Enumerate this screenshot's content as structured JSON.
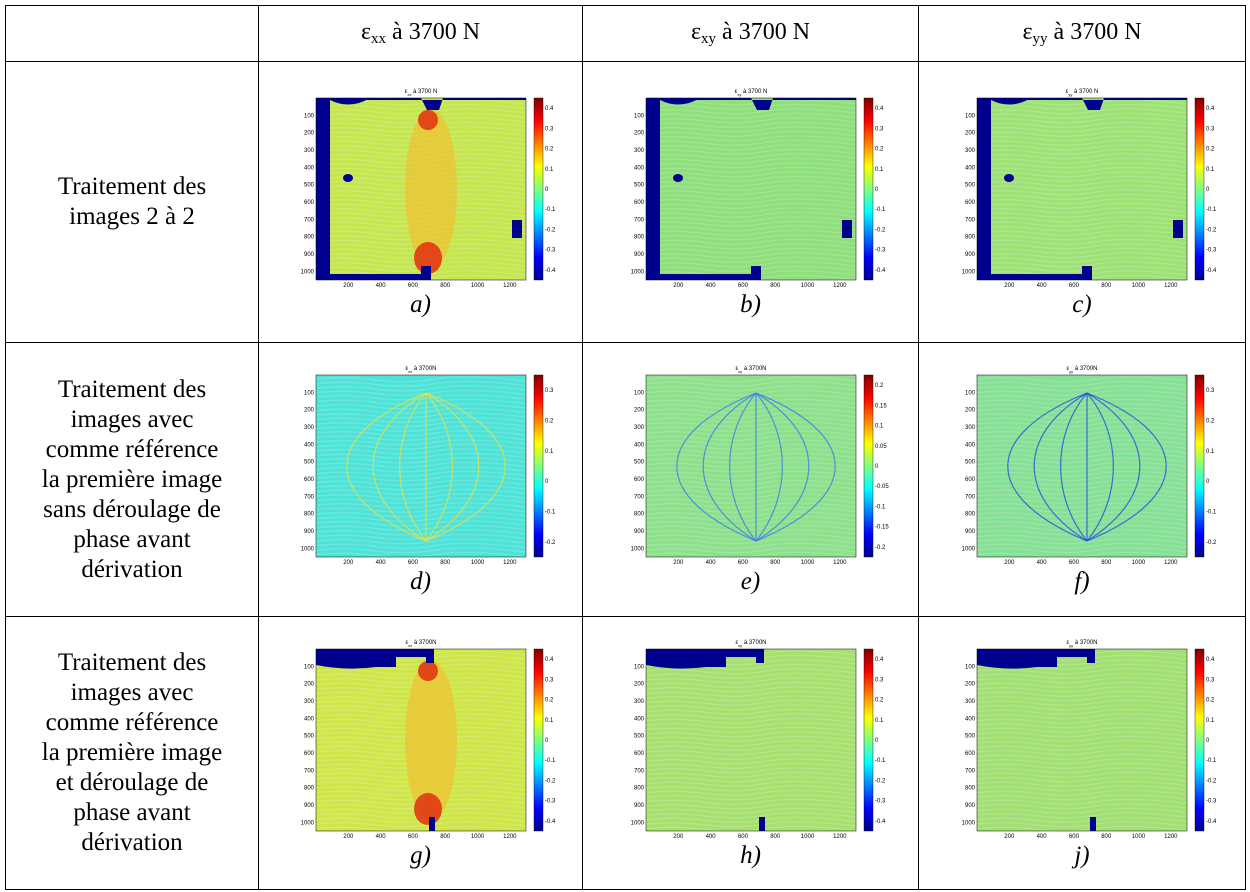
{
  "header": {
    "cells": [
      {
        "sym": "ε",
        "sub": "xx",
        "rest": " à 3700 N"
      },
      {
        "sym": "ε",
        "sub": "xy",
        "rest": " à 3700 N"
      },
      {
        "sym": "ε",
        "sub": "yy",
        "rest": " à 3700 N"
      }
    ]
  },
  "plot_axes": {
    "xticks": [
      "200",
      "400",
      "600",
      "800",
      "1000",
      "1200"
    ],
    "yticks": [
      "100",
      "200",
      "300",
      "400",
      "500",
      "600",
      "700",
      "800",
      "900",
      "1000"
    ]
  },
  "rows": [
    {
      "label_lines": [
        "Traitement des",
        "images 2 à 2"
      ],
      "panels": [
        {
          "title": {
            "sym": "ε",
            "sub": "xx",
            "rest": " à 3700 N"
          },
          "colorbar_ticks": [
            "0.4",
            "0.3",
            "0.2",
            "0.1",
            "0",
            "-0.1",
            "-0.2",
            "-0.3",
            "-0.4"
          ],
          "caption": "a)"
        },
        {
          "title": {
            "sym": "ε",
            "sub": "xy",
            "rest": " à 3700 N"
          },
          "colorbar_ticks": [
            "0.4",
            "0.3",
            "0.2",
            "0.1",
            "0",
            "-0.1",
            "-0.2",
            "-0.3",
            "-0.4"
          ],
          "caption": "b)"
        },
        {
          "title": {
            "sym": "ε",
            "sub": "yy",
            "rest": " à 3700 N"
          },
          "colorbar_ticks": [
            "0.4",
            "0.3",
            "0.2",
            "0.1",
            "0",
            "-0.1",
            "-0.2",
            "-0.3",
            "-0.4"
          ],
          "caption": "c)"
        }
      ]
    },
    {
      "label_lines": [
        "Traitement des",
        "images avec",
        "comme référence",
        "la première image",
        "sans déroulage de",
        "phase avant",
        "dérivation"
      ],
      "panels": [
        {
          "title": {
            "sym": "ε",
            "sub": "xx",
            "rest": " à 3700N"
          },
          "colorbar_ticks": [
            "0.3",
            "0.2",
            "0.1",
            "0",
            "-0.1",
            "-0.2"
          ],
          "caption": "d)"
        },
        {
          "title": {
            "sym": "ε",
            "sub": "xy",
            "rest": " à 3700N"
          },
          "colorbar_ticks": [
            "0.2",
            "0.15",
            "0.1",
            "0.05",
            "0",
            "-0.05",
            "-0.1",
            "-0.15",
            "-0.2"
          ],
          "caption": "e)"
        },
        {
          "title": {
            "sym": "ε",
            "sub": "yy",
            "rest": " à 3700N"
          },
          "colorbar_ticks": [
            "0.3",
            "0.2",
            "0.1",
            "0",
            "-0.1",
            "-0.2"
          ],
          "caption": "f)"
        }
      ]
    },
    {
      "label_lines": [
        "Traitement des",
        "images avec",
        "comme référence",
        "la première image",
        "et déroulage de",
        "phase avant",
        "dérivation"
      ],
      "panels": [
        {
          "title": {
            "sym": "ε",
            "sub": "xx",
            "rest": " à 3700N"
          },
          "colorbar_ticks": [
            "0.4",
            "0.3",
            "0.2",
            "0.1",
            "0",
            "-0.1",
            "-0.2",
            "-0.3",
            "-0.4"
          ],
          "caption": "g)"
        },
        {
          "title": {
            "sym": "ε",
            "sub": "xy",
            "rest": " à 3700N"
          },
          "colorbar_ticks": [
            "0.4",
            "0.3",
            "0.2",
            "0.1",
            "0",
            "-0.1",
            "-0.2",
            "-0.3",
            "-0.4"
          ],
          "caption": "h)"
        },
        {
          "title": {
            "sym": "ε",
            "sub": "yy",
            "rest": " à 3700N"
          },
          "colorbar_ticks": [
            "0.4",
            "0.3",
            "0.2",
            "0.1",
            "0",
            "-0.1",
            "-0.2",
            "-0.3",
            "-0.4"
          ],
          "caption": "j)"
        }
      ]
    }
  ]
}
